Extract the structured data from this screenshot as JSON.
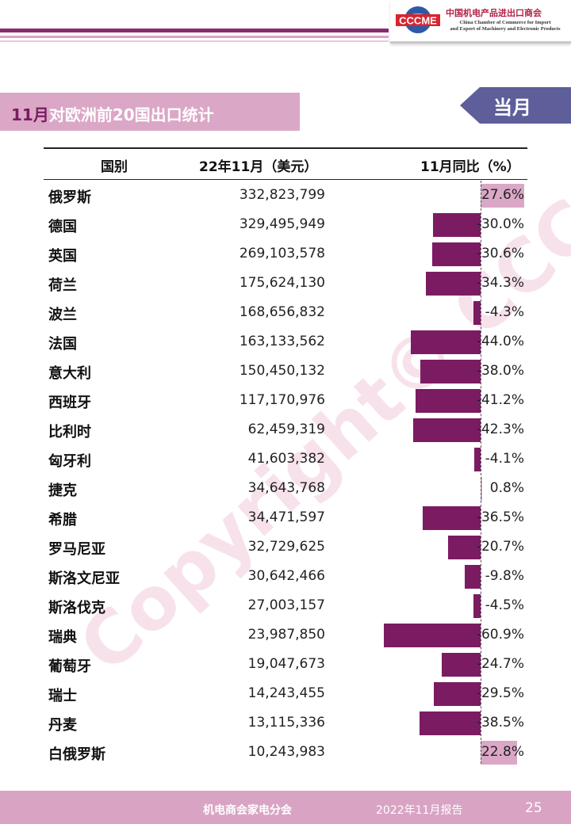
{
  "header": {
    "logo_mark": "CCCME",
    "org_cn": "中国机电产品进出口商会",
    "org_en_line1": "China Chamber of Commerce for Import",
    "org_en_line2": "and Export of Machinery and Electronic Products",
    "brand_color": "#8a2b72"
  },
  "title": {
    "prefix": "11月",
    "text": "对欧洲前20国出口统计"
  },
  "tag": "当月",
  "table": {
    "headers": [
      "国别",
      "22年11月（美元）",
      "11月同比（%）"
    ],
    "rows": [
      {
        "country": "俄罗斯",
        "value": "332,823,799",
        "yoy_label": "27.6%",
        "yoy": 27.6
      },
      {
        "country": "德国",
        "value": "329,495,949",
        "yoy_label": "-30.0%",
        "yoy": -30.0
      },
      {
        "country": "英国",
        "value": "269,103,578",
        "yoy_label": "-30.6%",
        "yoy": -30.6
      },
      {
        "country": "荷兰",
        "value": "175,624,130",
        "yoy_label": "-34.3%",
        "yoy": -34.3
      },
      {
        "country": "波兰",
        "value": "168,656,832",
        "yoy_label": "-4.3%",
        "yoy": -4.3
      },
      {
        "country": "法国",
        "value": "163,133,562",
        "yoy_label": "-44.0%",
        "yoy": -44.0
      },
      {
        "country": "意大利",
        "value": "150,450,132",
        "yoy_label": "-38.0%",
        "yoy": -38.0
      },
      {
        "country": "西班牙",
        "value": "117,170,976",
        "yoy_label": "-41.2%",
        "yoy": -41.2
      },
      {
        "country": "比利时",
        "value": "62,459,319",
        "yoy_label": "-42.3%",
        "yoy": -42.3
      },
      {
        "country": "匈牙利",
        "value": "41,603,382",
        "yoy_label": "-4.1%",
        "yoy": -4.1
      },
      {
        "country": "捷克",
        "value": "34,643,768",
        "yoy_label": "0.8%",
        "yoy": 0.8
      },
      {
        "country": "希腊",
        "value": "34,471,597",
        "yoy_label": "-36.5%",
        "yoy": -36.5
      },
      {
        "country": "罗马尼亚",
        "value": "32,729,625",
        "yoy_label": "-20.7%",
        "yoy": -20.7
      },
      {
        "country": "斯洛文尼亚",
        "value": "30,642,466",
        "yoy_label": "-9.8%",
        "yoy": -9.8
      },
      {
        "country": "斯洛伐克",
        "value": "27,003,157",
        "yoy_label": "-4.5%",
        "yoy": -4.5
      },
      {
        "country": "瑞典",
        "value": "23,987,850",
        "yoy_label": "-60.9%",
        "yoy": -60.9
      },
      {
        "country": "葡萄牙",
        "value": "19,047,673",
        "yoy_label": "-24.7%",
        "yoy": -24.7
      },
      {
        "country": "瑞士",
        "value": "14,243,455",
        "yoy_label": "-29.5%",
        "yoy": -29.5
      },
      {
        "country": "丹麦",
        "value": "13,115,336",
        "yoy_label": "-38.5%",
        "yoy": -38.5
      },
      {
        "country": "白俄罗斯",
        "value": "10,243,983",
        "yoy_label": "22.8%",
        "yoy": 22.8
      }
    ],
    "negative_bar_color": "#7b1c63",
    "positive_bar_color": "#dba7c6"
  },
  "watermark": "Copyright© CCCME",
  "footer": {
    "org": "机电商会家电分会",
    "report": "2022年11月报告",
    "page": "25"
  }
}
